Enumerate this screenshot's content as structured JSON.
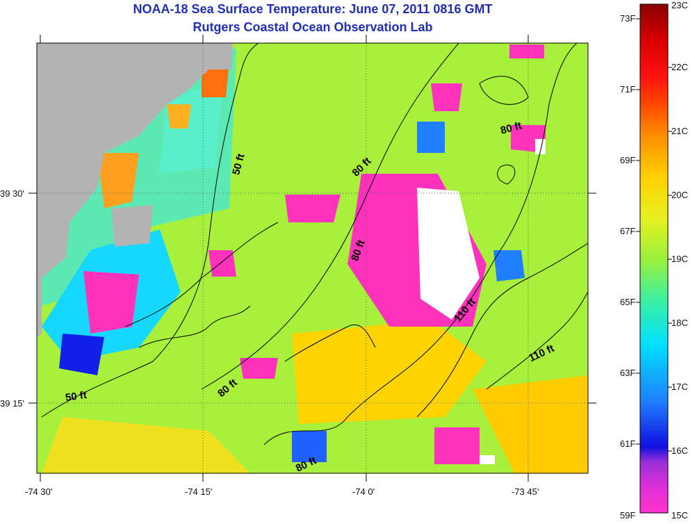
{
  "header": {
    "title": "NOAA-18 Sea Surface Temperature:  June 07, 2011 0816 GMT",
    "subtitle": "Rutgers Coastal Ocean Observation Lab"
  },
  "axes": {
    "x_ticks": [
      "-74 30'",
      "-74 15'",
      "-74 0'",
      "-73 45'"
    ],
    "y_ticks": [
      "39 30'",
      "39 15'"
    ]
  },
  "colorbar": {
    "fahrenheit": [
      "73F",
      "71F",
      "69F",
      "67F",
      "65F",
      "63F",
      "61F",
      "59F"
    ],
    "celsius": [
      "23C",
      "22C",
      "21C",
      "20C",
      "19C",
      "18C",
      "17C",
      "16C",
      "15C"
    ],
    "colors": [
      "#ff33cc",
      "#9a30d8",
      "#1010e0",
      "#1f7fff",
      "#00e0ff",
      "#3ef0a0",
      "#9cf03a",
      "#e8f020",
      "#ffd000",
      "#ff9000",
      "#ff4a00",
      "#ff1010",
      "#d80000",
      "#8a0000"
    ]
  },
  "contours": {
    "labels": [
      "50 ft",
      "80 ft",
      "80 ft",
      "80 ft",
      "80 ft",
      "110 ft",
      "110 ft",
      "50 ft",
      "80 ft"
    ]
  },
  "land_color": "#b3b3b3",
  "no_data_color": "#ffffff"
}
